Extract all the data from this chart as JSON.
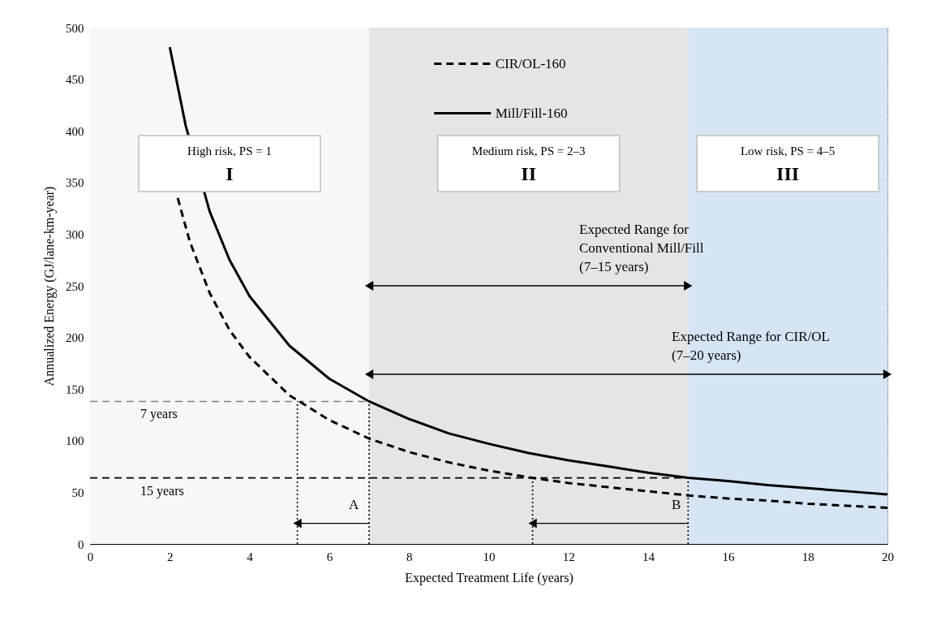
{
  "chart_data": {
    "type": "line",
    "xlabel": "Expected Treatment Life (years)",
    "ylabel": "Annualized Energy (GJ/lane-km-year)",
    "series": [
      {
        "name": "CIR/OL-160",
        "color": "#000000",
        "line_style": "dashed",
        "x": [
          2.2,
          2.5,
          3,
          3.5,
          4,
          5,
          6,
          7,
          8,
          9,
          10,
          11,
          12,
          13,
          14,
          15,
          16,
          17,
          18,
          19,
          20
        ],
        "values": [
          335,
          293,
          243,
          207,
          181,
          144,
          120,
          102,
          89,
          79,
          71,
          64.5,
          59,
          55,
          51,
          47,
          44,
          42,
          39,
          37,
          35
        ]
      },
      {
        "name": "Mill/Fill-160",
        "color": "#000000",
        "line_style": "solid",
        "x": [
          2,
          2.4,
          3,
          3.5,
          4,
          5,
          6,
          7,
          8,
          9,
          10,
          11,
          12,
          13,
          14,
          15,
          16,
          17,
          18,
          19,
          20
        ],
        "values": [
          481,
          405,
          322,
          275,
          240,
          192,
          160,
          138,
          121,
          107,
          97,
          88,
          81,
          75,
          69,
          64,
          61,
          57,
          54,
          51,
          48
        ]
      }
    ],
    "xlim": [
      0,
      20
    ],
    "xticks": [
      0,
      2,
      4,
      6,
      8,
      10,
      12,
      14,
      16,
      18,
      20
    ],
    "ylim": [
      0,
      500
    ],
    "yticks": [
      0,
      50,
      100,
      150,
      200,
      250,
      300,
      350,
      400,
      450,
      500
    ],
    "legend": "top",
    "bands": [
      {
        "axis": "x",
        "from": 0,
        "to": 7,
        "label": "High risk, PS = 1\nI",
        "color": "#f7f7f7"
      },
      {
        "axis": "x",
        "from": 7,
        "to": 15,
        "label": "Medium risk, PS = 2–3\nII",
        "color": "#e5e5e5"
      },
      {
        "axis": "x",
        "from": 15,
        "to": 20,
        "label": "Low risk, PS = 4–5\nIII",
        "color": "#d6e5f4"
      }
    ],
    "ref_lines": [
      {
        "axis": "y",
        "value": 138,
        "label": "7 years",
        "color": "#808080",
        "line_style": "dashed"
      },
      {
        "axis": "y",
        "value": 64,
        "label": "15 years",
        "color": "#000000",
        "line_style": "dashed"
      },
      {
        "axis": "x",
        "value": 5.2,
        "color": "#000000",
        "line_style": "dotted"
      },
      {
        "axis": "x",
        "value": 7,
        "color": "#000000",
        "line_style": "dotted"
      },
      {
        "axis": "x",
        "value": 11.1,
        "color": "#000000",
        "line_style": "dotted"
      },
      {
        "axis": "x",
        "value": 15,
        "color": "#000000",
        "line_style": "dotted"
      }
    ],
    "annotations": [
      {
        "text": "A",
        "x": 5.2,
        "y": 20
      },
      {
        "text": "B",
        "x": 11.1,
        "y": 20
      },
      "Expected Range for\nConventional Mill/Fill\n(7–15 years)",
      "Expected Range for CIR/OL\n(7–20 years)"
    ]
  }
}
